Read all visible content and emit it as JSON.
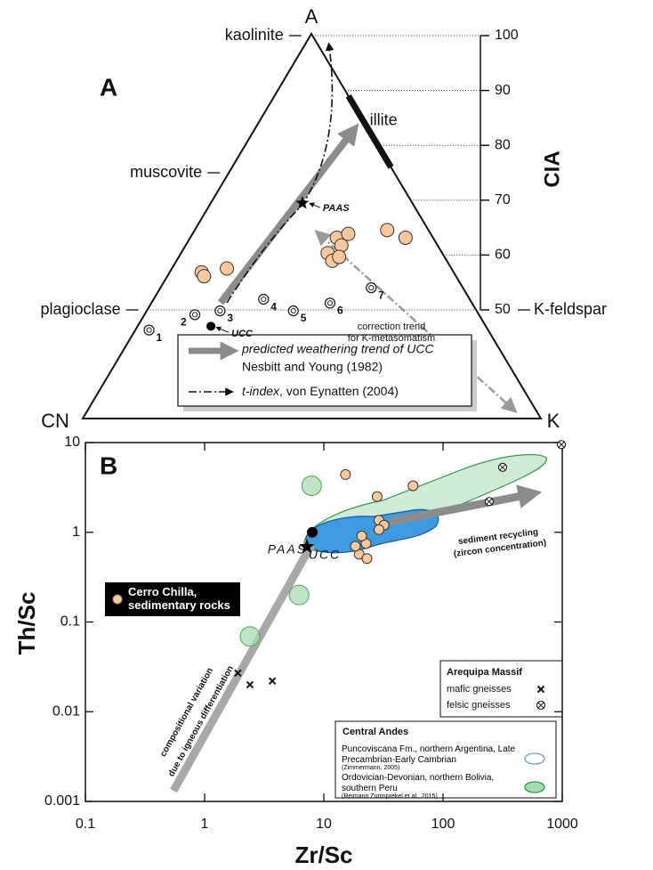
{
  "chart_data": [
    {
      "type": "ternary",
      "panel": "A",
      "vertices": [
        "A",
        "CN",
        "K"
      ],
      "axis_label": "CIA",
      "ylim": [
        50,
        100
      ],
      "yticks": [
        50,
        60,
        70,
        80,
        90,
        100
      ],
      "minerals": [
        {
          "label": "kaolinite",
          "cia": 100,
          "side": "left"
        },
        {
          "label": "muscovite",
          "cia": 75,
          "side": "left"
        },
        {
          "label": "plagioclase",
          "cia": 50,
          "side": "left"
        },
        {
          "label": "K-feldspar",
          "cia": 50,
          "side": "right"
        },
        {
          "label": "illite",
          "cia": [
            76,
            89
          ],
          "side": "edge"
        }
      ],
      "samples": {
        "color": "#f9c89b",
        "A": [
          38,
          37,
          39,
          43,
          47,
          48,
          45,
          41,
          42,
          49,
          47
        ],
        "CN": [
          55,
          55,
          49,
          25,
          21,
          18,
          21,
          25,
          23,
          9,
          6
        ],
        "K": [
          7,
          8,
          12,
          32,
          32,
          34,
          34,
          34,
          35,
          42,
          47
        ]
      },
      "references": {
        "labels": [
          "1",
          "2",
          "3",
          "4",
          "5",
          "6",
          "7",
          "UCC",
          "PAAS"
        ],
        "marker": [
          "ring",
          "ring",
          "ring",
          "ring",
          "ring",
          "ring",
          "ring",
          "dot",
          "star"
        ],
        "A": [
          23,
          27,
          28,
          31,
          28,
          30,
          34,
          24,
          56
        ],
        "CN": [
          74,
          62,
          56,
          45,
          40,
          31,
          20,
          60,
          24
        ],
        "K": [
          3,
          11,
          16,
          24,
          32,
          39,
          46,
          16,
          20
        ]
      },
      "annotations": [
        "correction trend",
        "for K-metasomatism"
      ],
      "legend": [
        {
          "name": "predicted weathering trend of UCC",
          "source": "Nesbitt and Young (1982)"
        },
        {
          "name": "t-index",
          "source": ", von Eynatten (2004)"
        }
      ]
    },
    {
      "type": "scatter",
      "panel": "B",
      "xlabel": "Zr/Sc",
      "ylabel": "Th/Sc",
      "log_x": true,
      "log_y": true,
      "xlim": [
        0.1,
        1000
      ],
      "xticks": [
        0.1,
        1,
        10,
        100,
        1000
      ],
      "ylim": [
        0.001,
        10
      ],
      "yticks": [
        0.001,
        0.01,
        0.1,
        1,
        10
      ],
      "series": [
        {
          "name": "Cerro Chilla, sedimentary rocks",
          "color": "#f9c89b",
          "marker": "circle",
          "legend": "box",
          "x": [
            15.2,
            56,
            28,
            29,
            32,
            29,
            22.6,
            20.8,
            19.8,
            23,
            18.4
          ],
          "y": [
            4.4,
            3.3,
            2.5,
            1.36,
            1.2,
            1.07,
            0.75,
            0.91,
            0.57,
            0.51,
            0.7
          ]
        },
        {
          "color": "#a9dbb2",
          "marker": "big-circle",
          "x": [
            7.9,
            6.2,
            2.4
          ],
          "y": [
            3.3,
            0.2,
            0.069
          ]
        },
        {
          "name": "mafic gneisses",
          "color": "#111111",
          "marker": "cross",
          "legend": "arequipa",
          "x": [
            1.9,
            2.4,
            3.7
          ],
          "y": [
            0.027,
            0.02,
            0.022
          ]
        },
        {
          "name": "felsic gneisses",
          "color": "#111111",
          "marker": "circle-x",
          "legend": "arequipa",
          "x": [
            244,
            316,
            984
          ],
          "y": [
            2.2,
            5.3,
            9.5
          ]
        }
      ],
      "references": {
        "labels": [
          "UCC",
          "PAAS"
        ],
        "marker": [
          "dot",
          "star"
        ],
        "x": [
          8,
          7.2
        ],
        "y": [
          1,
          0.69
        ]
      },
      "legend_title": "Arequipa Massif",
      "regions": {
        "title": "Central Andes",
        "items": [
          {
            "name": "Puncoviscana Fm., northern Argentina, Late Precambrian-Early Cambrian",
            "source": "(Zimmermann, 2005)",
            "color": "#6a9fd0",
            "fill": "#ffffff"
          },
          {
            "name": "Ordovician-Devonian, northern Bolivia, southern Peru",
            "source": "(Reimann Zumsprekel et al., 2015)",
            "color": "#2e9a45",
            "fill": "#a9dbb2"
          }
        ]
      },
      "annotations": [
        "sediment recycling",
        "(zircon concentration)",
        "compositional variation",
        "due to igneous differentiation"
      ]
    }
  ]
}
